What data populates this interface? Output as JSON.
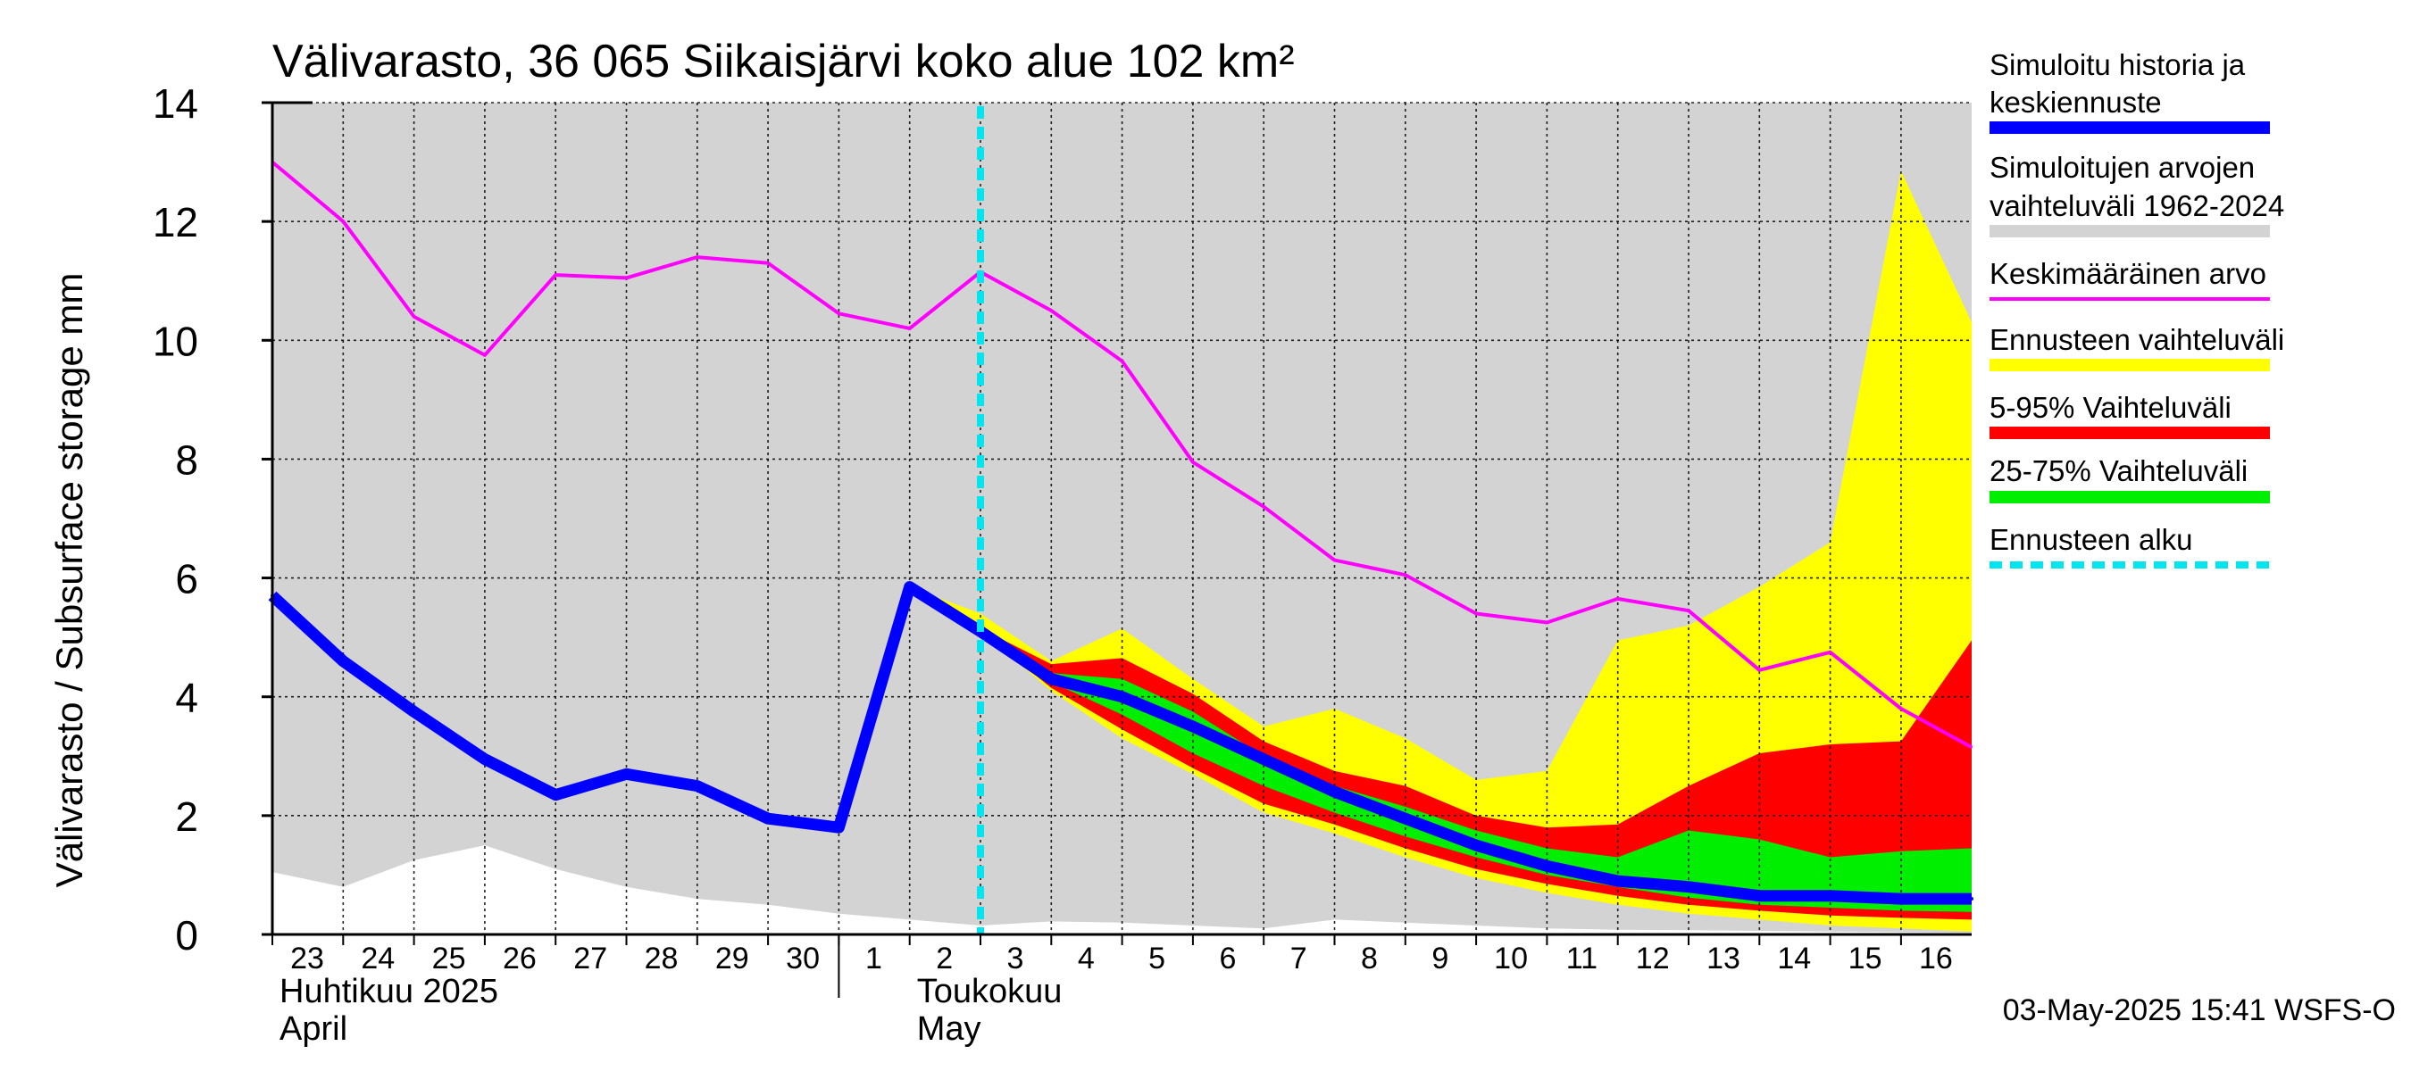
{
  "title": "Välivarasto, 36 065 Siikaisjärvi koko alue 102 km²",
  "timestamp": "03-May-2025 15:41 WSFS-O",
  "chart_data": {
    "type": "area",
    "ylabel": "Välivarasto / Subsurface storage  mm",
    "ylim": [
      0,
      14
    ],
    "y_ticks": [
      0,
      2,
      4,
      6,
      8,
      10,
      12,
      14
    ],
    "x_day_labels": [
      "23",
      "24",
      "25",
      "26",
      "27",
      "28",
      "29",
      "30",
      "1",
      "2",
      "3",
      "4",
      "5",
      "6",
      "7",
      "8",
      "9",
      "10",
      "11",
      "12",
      "13",
      "14",
      "15",
      "16"
    ],
    "month_labels": [
      {
        "fi": "Huhtikuu  2025",
        "en": "April",
        "start_index": 0
      },
      {
        "fi": "Toukokuu",
        "en": "May",
        "start_index": 9
      }
    ],
    "forecast_start_index": 10,
    "series": [
      {
        "name": "Simuloitujen arvojen vaihteluväli 1962-2024",
        "kind": "band",
        "color": "#d3d3d3",
        "x_start": 0,
        "lower": [
          1.05,
          0.8,
          1.25,
          1.5,
          1.1,
          0.8,
          0.6,
          0.5,
          0.35,
          0.25,
          0.15,
          0.22,
          0.2,
          0.15,
          0.1,
          0.25,
          0.2,
          0.15,
          0.1,
          0.08,
          0.07,
          0.06,
          0.05,
          0.04,
          0.03
        ],
        "upper": [
          14,
          14,
          14,
          14,
          14,
          14,
          14,
          14,
          14,
          14,
          14,
          14,
          14,
          14,
          14,
          14,
          14,
          14,
          14,
          14,
          14,
          14,
          14,
          14,
          14
        ]
      },
      {
        "name": "Ennusteen vaihteluväli",
        "kind": "band",
        "color": "#ffff00",
        "x_start": 9,
        "lower": [
          5.85,
          5.1,
          4.1,
          3.3,
          2.7,
          2.05,
          1.7,
          1.3,
          0.95,
          0.7,
          0.5,
          0.35,
          0.25,
          0.15,
          0.1,
          0.05
        ],
        "upper": [
          5.85,
          5.4,
          4.6,
          5.15,
          4.3,
          3.5,
          3.8,
          3.3,
          2.6,
          2.75,
          4.95,
          5.2,
          5.85,
          6.6,
          12.85,
          10.3
        ]
      },
      {
        "name": "5-95% Vaihteluväli",
        "kind": "band",
        "color": "#ff0000",
        "x_start": 9,
        "lower": [
          5.85,
          5.1,
          4.15,
          3.45,
          2.8,
          2.2,
          1.85,
          1.45,
          1.1,
          0.85,
          0.65,
          0.5,
          0.4,
          0.32,
          0.28,
          0.25
        ],
        "upper": [
          5.85,
          5.15,
          4.55,
          4.65,
          4.05,
          3.25,
          2.75,
          2.5,
          2.0,
          1.8,
          1.85,
          2.5,
          3.05,
          3.2,
          3.25,
          4.95
        ]
      },
      {
        "name": "25-75% Vaihteluväli",
        "kind": "band",
        "color": "#00ee00",
        "x_start": 9,
        "lower": [
          5.85,
          5.1,
          4.25,
          3.7,
          3.05,
          2.5,
          2.05,
          1.65,
          1.3,
          1.0,
          0.8,
          0.62,
          0.5,
          0.45,
          0.4,
          0.38
        ],
        "upper": [
          5.85,
          5.1,
          4.4,
          4.3,
          3.75,
          3.0,
          2.5,
          2.15,
          1.75,
          1.45,
          1.3,
          1.75,
          1.6,
          1.3,
          1.4,
          1.45
        ]
      },
      {
        "name": "Keskimääräinen arvo",
        "kind": "line",
        "color": "#ff00ff",
        "x_start": 0,
        "values": [
          13.0,
          12.0,
          10.4,
          9.75,
          11.1,
          11.05,
          11.4,
          11.3,
          10.45,
          10.2,
          11.15,
          10.5,
          9.65,
          7.95,
          7.2,
          6.3,
          6.05,
          5.4,
          5.25,
          5.65,
          5.45,
          4.45,
          4.75,
          3.8,
          3.15
        ]
      },
      {
        "name": "Simuloitu historia ja keskiennuste",
        "kind": "line",
        "color": "#0000ff",
        "x_start": 0,
        "values": [
          5.7,
          4.6,
          3.75,
          2.95,
          2.35,
          2.7,
          2.5,
          1.95,
          1.8,
          5.85,
          5.1,
          4.3,
          4.0,
          3.5,
          2.95,
          2.4,
          1.95,
          1.5,
          1.15,
          0.9,
          0.8,
          0.65,
          0.65,
          0.6,
          0.6
        ]
      }
    ]
  },
  "legend": [
    {
      "label": "Simuloitu historia ja keskiennuste",
      "color": "#0000ff",
      "style": "thick"
    },
    {
      "label": "Simuloitujen arvojen vaihteluväli 1962-2024",
      "color": "#d3d3d3",
      "style": "thick"
    },
    {
      "label": "Keskimääräinen arvo",
      "color": "#ff00ff",
      "style": "thin"
    },
    {
      "label": "Ennusteen vaihteluväli",
      "color": "#ffff00",
      "style": "thick"
    },
    {
      "label": "5-95% Vaihteluväli",
      "color": "#ff0000",
      "style": "thick"
    },
    {
      "label": "25-75% Vaihteluväli",
      "color": "#00ee00",
      "style": "thick"
    },
    {
      "label": "Ennusteen alku",
      "color": "#00e5ee",
      "style": "dashed"
    }
  ]
}
